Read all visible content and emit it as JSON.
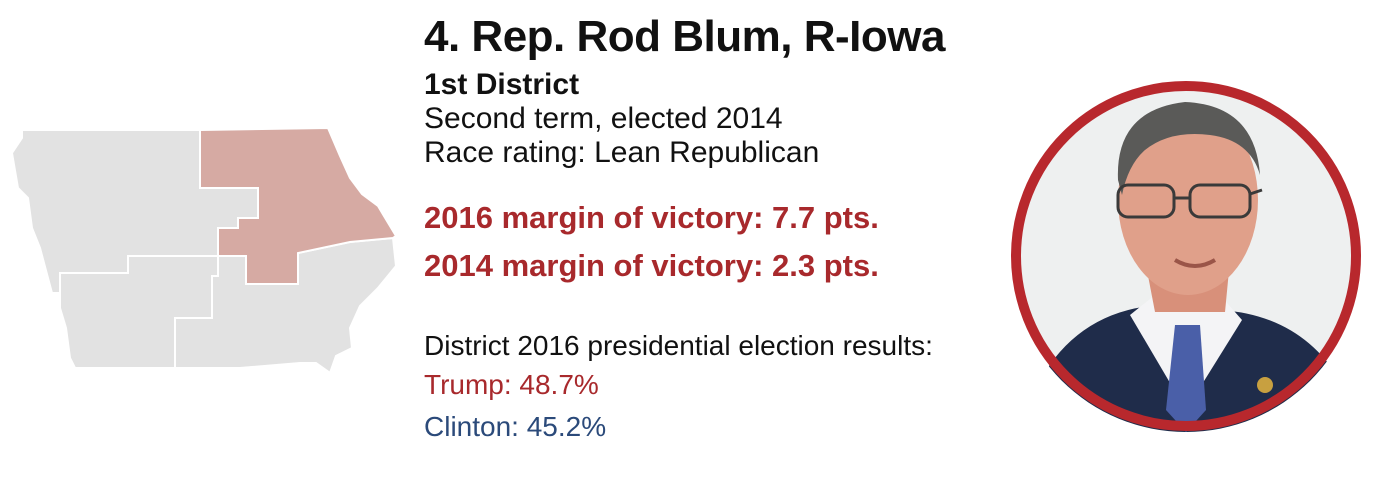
{
  "header": {
    "title": "4. Rep. Rod Blum, R-Iowa",
    "district": "1st District",
    "term": "Second term, elected 2014",
    "race_rating": "Race rating: Lean Republican"
  },
  "margins": [
    {
      "label": "2016 margin of victory: 7.7 pts."
    },
    {
      "label": "2014 margin of victory: 2.3 pts."
    }
  ],
  "results": {
    "title": "District 2016 presidential election results:",
    "candidates": [
      {
        "label": "Trump: 48.7%"
      },
      {
        "label": "Clinton: 45.2%"
      }
    ]
  },
  "colors": {
    "republican": "#a8292c",
    "democrat": "#2b4a7a",
    "highlight_district": "#d6aaa3",
    "other_districts": "#e2e2e2",
    "district_border": "#ffffff",
    "photo_ring": "#b8282d"
  },
  "map": {
    "state": "Iowa",
    "highlighted_district": "1st District"
  },
  "photo": {
    "subject": "Rep. Rod Blum"
  }
}
